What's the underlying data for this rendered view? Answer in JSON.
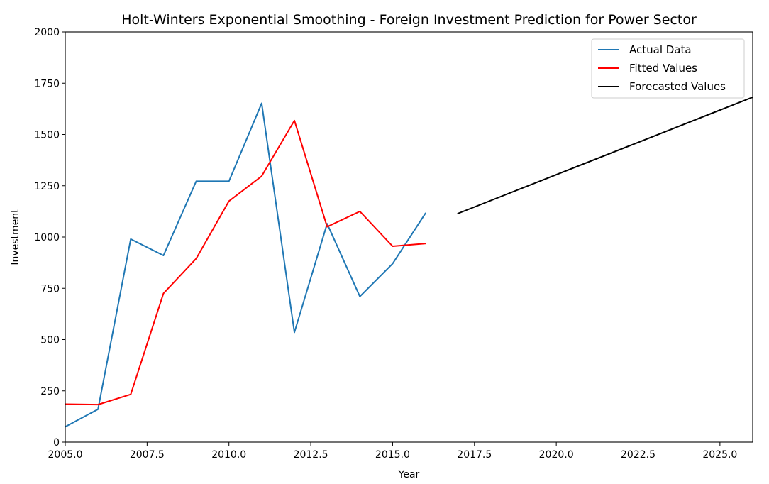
{
  "chart_data": {
    "type": "line",
    "title": "Holt-Winters Exponential Smoothing - Foreign Investment Prediction for Power Sector",
    "xlabel": "Year",
    "ylabel": "Investment",
    "xlim": [
      2005.0,
      2026.0
    ],
    "ylim": [
      0,
      2000
    ],
    "xticks": [
      2005.0,
      2007.5,
      2010.0,
      2012.5,
      2015.0,
      2017.5,
      2020.0,
      2022.5,
      2025.0
    ],
    "xtick_labels": [
      "2005.0",
      "2007.5",
      "2010.0",
      "2012.5",
      "2015.0",
      "2017.5",
      "2020.0",
      "2022.5",
      "2025.0"
    ],
    "yticks": [
      0,
      250,
      500,
      750,
      1000,
      1250,
      1500,
      1750,
      2000
    ],
    "ytick_labels": [
      "0",
      "250",
      "500",
      "750",
      "1000",
      "1250",
      "1500",
      "1750",
      "2000"
    ],
    "grid": false,
    "legend_position": "top-right",
    "series": [
      {
        "name": "Actual Data",
        "color": "#1f77b4",
        "x": [
          2005,
          2006,
          2007,
          2008,
          2009,
          2010,
          2011,
          2012,
          2013,
          2014,
          2015,
          2016
        ],
        "y": [
          75,
          160,
          990,
          910,
          1272,
          1272,
          1652,
          535,
          1065,
          710,
          870,
          1115
        ]
      },
      {
        "name": "Fitted Values",
        "color": "#ff0000",
        "x": [
          2005,
          2006,
          2007,
          2008,
          2009,
          2010,
          2011,
          2012,
          2013,
          2014,
          2015,
          2016
        ],
        "y": [
          185,
          183,
          233,
          725,
          895,
          1175,
          1297,
          1568,
          1050,
          1125,
          955,
          968
        ]
      },
      {
        "name": "Forecasted Values",
        "color": "#000000",
        "x": [
          2017,
          2026
        ],
        "y": [
          1115,
          1682
        ]
      }
    ]
  }
}
